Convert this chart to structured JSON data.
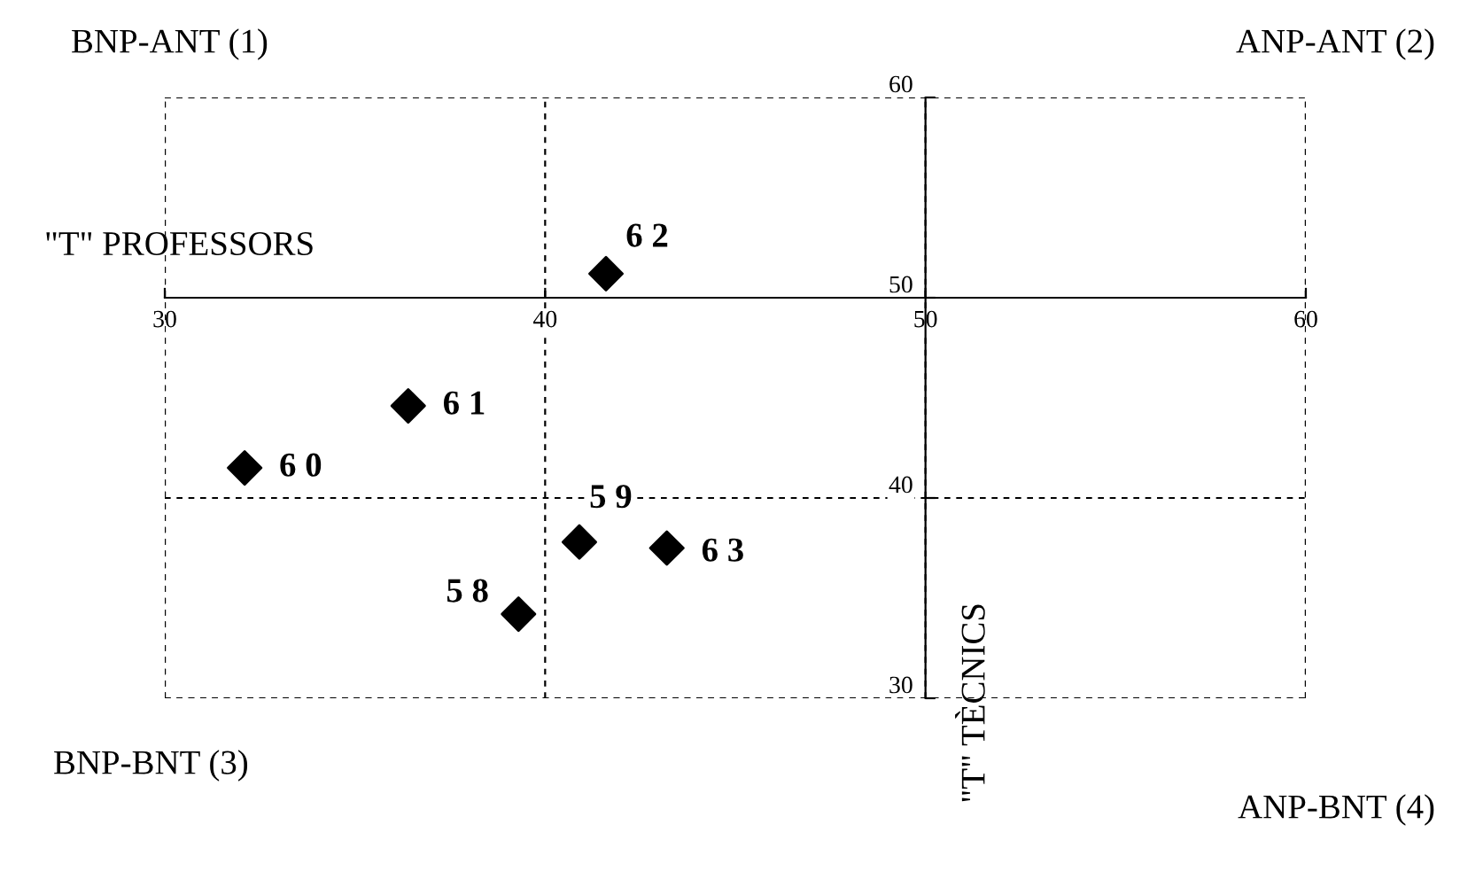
{
  "chart_data": {
    "type": "scatter",
    "xlabel": "\"T\" PROFESSORS",
    "ylabel": "\"T\" TÈCNICS",
    "x": [
      41.6,
      36.4,
      32.1,
      40.9,
      43.2,
      39.3
    ],
    "values": [
      51.2,
      44.6,
      41.5,
      37.8,
      37.5,
      34.2
    ],
    "color": "#000000",
    "marker": "diamond",
    "xlim": [
      30,
      60
    ],
    "ylim": [
      30,
      60
    ],
    "xticks": [
      30,
      40,
      50,
      60
    ],
    "yticks": [
      30,
      40,
      50,
      60
    ],
    "grid": true,
    "annotations": [
      "BNP-ANT (1)",
      "ANP-ANT (2)",
      "BNP-BNT (3)",
      "ANP-BNT (4)",
      {
        "text": "6 2",
        "x": 41.6,
        "y": 51.2
      },
      {
        "text": "6 1",
        "x": 36.4,
        "y": 44.6
      },
      {
        "text": "6 0",
        "x": 32.1,
        "y": 41.5
      },
      {
        "text": "5 9",
        "x": 40.9,
        "y": 37.8
      },
      {
        "text": "6 3",
        "x": 43.2,
        "y": 37.5
      },
      {
        "text": "5 8",
        "x": 39.3,
        "y": 34.2
      }
    ]
  }
}
